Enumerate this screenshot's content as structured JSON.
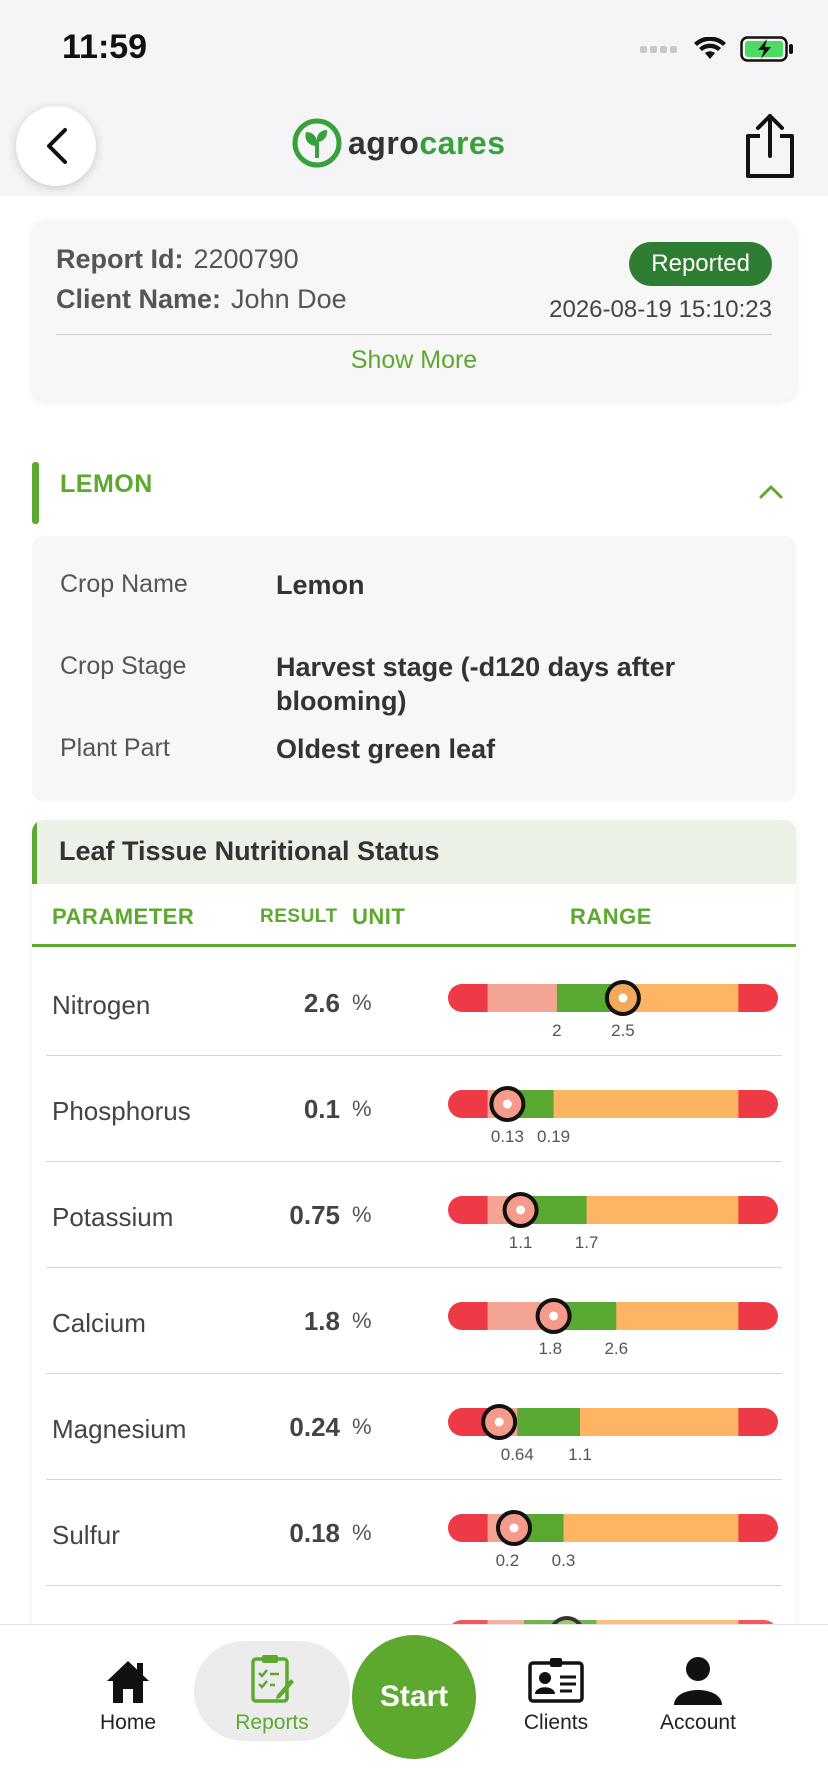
{
  "status_bar": {
    "time": "11:59"
  },
  "header": {
    "logo_part1": "agro",
    "logo_part2": "cares"
  },
  "report": {
    "id_label": "Report Id:",
    "id_value": "2200790",
    "client_label": "Client Name:",
    "client_value": "John Doe",
    "status": "Reported",
    "datetime": "2026-08-19 15:10:23",
    "show_more": "Show More"
  },
  "crop": {
    "title": "LEMON",
    "fields": [
      {
        "label": "Crop Name",
        "value": "Lemon"
      },
      {
        "label": "Crop Stage",
        "value": "Harvest stage (-d120 days after blooming)"
      },
      {
        "label": "Plant Part",
        "value": "Oldest green leaf"
      }
    ]
  },
  "nutrition": {
    "title": "Leaf Tissue Nutritional Status",
    "columns": {
      "parameter": "PARAMETER",
      "result": "RESULT",
      "unit": "UNIT",
      "range": "RANGE"
    },
    "rows": [
      {
        "name": "Nitrogen",
        "value": "2.6",
        "unit": "%",
        "low": "2",
        "high": "2.5",
        "segments": [
          0.12,
          0.21,
          0.2,
          0.35,
          0.12
        ],
        "marker": 0.53,
        "marker_color": "#f3a85e"
      },
      {
        "name": "Phosphorus",
        "value": "0.1",
        "unit": "%",
        "low": "0.13",
        "high": "0.19",
        "segments": [
          0.12,
          0.06,
          0.14,
          0.56,
          0.12
        ],
        "marker": 0.18,
        "marker_color": "#f49b8c"
      },
      {
        "name": "Potassium",
        "value": "0.75",
        "unit": "%",
        "low": "1.1",
        "high": "1.7",
        "segments": [
          0.12,
          0.1,
          0.2,
          0.46,
          0.12
        ],
        "marker": 0.22,
        "marker_color": "#f49b8c"
      },
      {
        "name": "Calcium",
        "value": "1.8",
        "unit": "%",
        "low": "1.8",
        "high": "2.6",
        "segments": [
          0.12,
          0.19,
          0.2,
          0.37,
          0.12
        ],
        "marker": 0.32,
        "marker_color": "#f49b8c"
      },
      {
        "name": "Magnesium",
        "value": "0.24",
        "unit": "%",
        "low": "0.64",
        "high": "1.1",
        "segments": [
          0.12,
          0.09,
          0.19,
          0.48,
          0.12
        ],
        "marker": 0.155,
        "marker_color": "#f49b8c"
      },
      {
        "name": "Sulfur",
        "value": "0.18",
        "unit": "%",
        "low": "0.2",
        "high": "0.3",
        "segments": [
          0.12,
          0.06,
          0.17,
          0.53,
          0.12
        ],
        "marker": 0.2,
        "marker_color": "#f49b8c"
      }
    ],
    "partial_row": {
      "segments": [
        0.12,
        0.11,
        0.22,
        0.43,
        0.12
      ],
      "marker": 0.36,
      "marker_color": "#8bc34a"
    }
  },
  "colors": {
    "red": "#ee3a46",
    "pink": "#f4a492",
    "green": "#58a832",
    "orange": "#fdb563",
    "accent": "#5da82f"
  },
  "nav": {
    "home": "Home",
    "reports": "Reports",
    "start": "Start",
    "clients": "Clients",
    "account": "Account"
  }
}
